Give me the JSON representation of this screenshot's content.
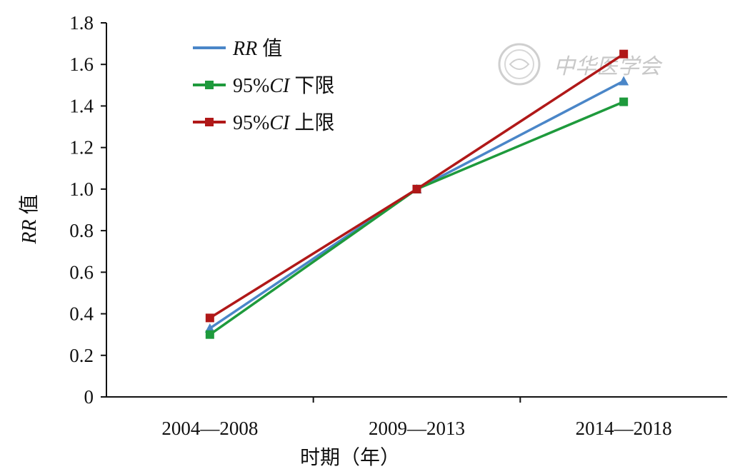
{
  "chart_data": {
    "type": "line",
    "categories": [
      "2004—2008",
      "2009—2013",
      "2014—2018"
    ],
    "xlabel": "时期（年）",
    "ylabel": "RR 值",
    "ylabel_parts": {
      "italic": "RR",
      "rest": " 值"
    },
    "ylim": [
      0,
      1.8
    ],
    "yticks": [
      "0",
      "0.2",
      "0.4",
      "0.6",
      "0.8",
      "1.0",
      "1.2",
      "1.4",
      "1.6",
      "1.8"
    ],
    "grid": false,
    "legend_position": "top-left",
    "series": [
      {
        "name": "RR 值",
        "name_italic": "RR",
        "name_rest": " 值",
        "values": [
          0.33,
          1.0,
          1.52
        ],
        "color": "#4a86c8",
        "marker": "triangle"
      },
      {
        "name": "95%CI 下限",
        "name_prefix": "95%",
        "name_italic": "CI",
        "name_rest": " 下限",
        "values": [
          0.3,
          1.0,
          1.42
        ],
        "color": "#1e9a3c",
        "marker": "square"
      },
      {
        "name": "95%CI 上限",
        "name_prefix": "95%",
        "name_italic": "CI",
        "name_rest": " 上限",
        "values": [
          0.38,
          1.0,
          1.65
        ],
        "color": "#b01818",
        "marker": "square"
      }
    ]
  },
  "watermark": {
    "text": "中华医学会",
    "color": "#c8c8c8"
  }
}
